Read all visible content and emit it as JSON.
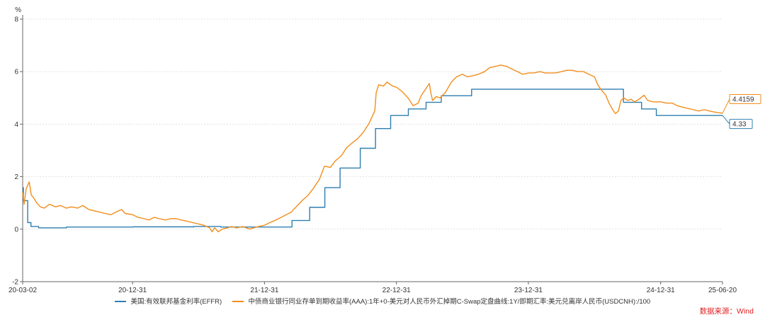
{
  "chart_data": {
    "type": "line",
    "y_unit": "%",
    "ylim": [
      -2,
      8
    ],
    "y_ticks": [
      "8",
      "6",
      "4",
      "2",
      "0",
      "-2"
    ],
    "x_range": [
      "2020-03-02",
      "2025-06-20"
    ],
    "x_ticks": [
      "20-03-02",
      "20-12-31",
      "21-12-31",
      "22-12-31",
      "23-12-31",
      "24-12-31",
      "25-06-20"
    ],
    "grid": true,
    "legend_position": "bottom",
    "series": [
      {
        "name": "美国:有效联邦基金利率(EFFR)",
        "color": "#2e7fb0",
        "end_label": "4.33",
        "step": true,
        "points": [
          [
            "2020-03-02",
            1.58
          ],
          [
            "2020-03-04",
            1.09
          ],
          [
            "2020-03-16",
            0.25
          ],
          [
            "2020-03-25",
            0.1
          ],
          [
            "2020-04-15",
            0.05
          ],
          [
            "2020-07-01",
            0.08
          ],
          [
            "2021-01-01",
            0.09
          ],
          [
            "2021-06-17",
            0.08
          ],
          [
            "2021-06-18",
            0.1
          ],
          [
            "2021-09-01",
            0.08
          ],
          [
            "2022-03-17",
            0.33
          ],
          [
            "2022-05-05",
            0.83
          ],
          [
            "2022-06-16",
            1.58
          ],
          [
            "2022-07-28",
            2.33
          ],
          [
            "2022-09-22",
            3.08
          ],
          [
            "2022-11-03",
            3.83
          ],
          [
            "2022-12-15",
            4.33
          ],
          [
            "2023-02-02",
            4.58
          ],
          [
            "2023-03-23",
            4.83
          ],
          [
            "2023-05-04",
            5.08
          ],
          [
            "2023-07-27",
            5.33
          ],
          [
            "2024-09-19",
            4.83
          ],
          [
            "2024-11-08",
            4.58
          ],
          [
            "2024-12-19",
            4.33
          ],
          [
            "2025-06-20",
            4.33
          ]
        ]
      },
      {
        "name": "中债商业银行同业存单到期收益率(AAA):1年+0-美元对人民币外汇掉期C-Swap定盘曲线:1Y/即期汇率:美元兑离岸人民币(USDCNH):/100",
        "color": "#f28e1c",
        "end_label": "4.4159",
        "step": false,
        "points": [
          [
            "2020-03-02",
            1.4
          ],
          [
            "2020-03-06",
            0.95
          ],
          [
            "2020-03-12",
            1.55
          ],
          [
            "2020-03-20",
            1.8
          ],
          [
            "2020-03-26",
            1.3
          ],
          [
            "2020-04-01",
            1.2
          ],
          [
            "2020-04-10",
            1.0
          ],
          [
            "2020-04-20",
            0.85
          ],
          [
            "2020-05-01",
            0.8
          ],
          [
            "2020-05-15",
            0.95
          ],
          [
            "2020-06-01",
            0.85
          ],
          [
            "2020-06-15",
            0.9
          ],
          [
            "2020-07-01",
            0.8
          ],
          [
            "2020-07-15",
            0.85
          ],
          [
            "2020-08-01",
            0.8
          ],
          [
            "2020-08-15",
            0.9
          ],
          [
            "2020-09-01",
            0.75
          ],
          [
            "2020-09-15",
            0.7
          ],
          [
            "2020-10-01",
            0.65
          ],
          [
            "2020-10-15",
            0.6
          ],
          [
            "2020-11-01",
            0.55
          ],
          [
            "2020-11-15",
            0.65
          ],
          [
            "2020-12-01",
            0.75
          ],
          [
            "2020-12-10",
            0.6
          ],
          [
            "2020-12-31",
            0.55
          ],
          [
            "2021-01-15",
            0.45
          ],
          [
            "2021-02-01",
            0.4
          ],
          [
            "2021-02-15",
            0.35
          ],
          [
            "2021-03-01",
            0.45
          ],
          [
            "2021-03-15",
            0.4
          ],
          [
            "2021-04-01",
            0.35
          ],
          [
            "2021-04-15",
            0.4
          ],
          [
            "2021-05-01",
            0.4
          ],
          [
            "2021-05-15",
            0.35
          ],
          [
            "2021-06-01",
            0.3
          ],
          [
            "2021-06-15",
            0.25
          ],
          [
            "2021-07-01",
            0.2
          ],
          [
            "2021-07-15",
            0.15
          ],
          [
            "2021-08-01",
            0.05
          ],
          [
            "2021-08-08",
            -0.1
          ],
          [
            "2021-08-15",
            0.05
          ],
          [
            "2021-08-25",
            -0.1
          ],
          [
            "2021-09-05",
            0.0
          ],
          [
            "2021-09-20",
            0.05
          ],
          [
            "2021-10-01",
            0.1
          ],
          [
            "2021-10-15",
            0.05
          ],
          [
            "2021-11-01",
            0.1
          ],
          [
            "2021-11-20",
            0.0
          ],
          [
            "2021-12-01",
            0.05
          ],
          [
            "2021-12-15",
            0.1
          ],
          [
            "2021-12-31",
            0.15
          ],
          [
            "2022-01-15",
            0.25
          ],
          [
            "2022-02-01",
            0.35
          ],
          [
            "2022-02-15",
            0.45
          ],
          [
            "2022-03-01",
            0.55
          ],
          [
            "2022-03-15",
            0.65
          ],
          [
            "2022-04-01",
            0.9
          ],
          [
            "2022-04-15",
            1.1
          ],
          [
            "2022-05-01",
            1.3
          ],
          [
            "2022-05-15",
            1.55
          ],
          [
            "2022-06-01",
            1.9
          ],
          [
            "2022-06-15",
            2.4
          ],
          [
            "2022-07-01",
            2.35
          ],
          [
            "2022-07-15",
            2.6
          ],
          [
            "2022-08-01",
            2.8
          ],
          [
            "2022-08-15",
            3.1
          ],
          [
            "2022-09-01",
            3.3
          ],
          [
            "2022-09-15",
            3.45
          ],
          [
            "2022-10-01",
            3.7
          ],
          [
            "2022-10-15",
            4.0
          ],
          [
            "2022-11-01",
            4.5
          ],
          [
            "2022-11-05",
            5.2
          ],
          [
            "2022-11-12",
            5.5
          ],
          [
            "2022-11-25",
            5.45
          ],
          [
            "2022-12-05",
            5.6
          ],
          [
            "2022-12-20",
            5.45
          ],
          [
            "2023-01-01",
            5.4
          ],
          [
            "2023-01-15",
            5.25
          ],
          [
            "2023-02-01",
            5.0
          ],
          [
            "2023-02-15",
            4.7
          ],
          [
            "2023-03-01",
            4.8
          ],
          [
            "2023-03-10",
            5.1
          ],
          [
            "2023-03-20",
            5.3
          ],
          [
            "2023-04-01",
            5.55
          ],
          [
            "2023-04-05",
            5.2
          ],
          [
            "2023-04-10",
            4.9
          ],
          [
            "2023-04-20",
            5.05
          ],
          [
            "2023-05-01",
            5.0
          ],
          [
            "2023-05-15",
            5.2
          ],
          [
            "2023-06-01",
            5.6
          ],
          [
            "2023-06-15",
            5.8
          ],
          [
            "2023-07-01",
            5.9
          ],
          [
            "2023-07-15",
            5.8
          ],
          [
            "2023-08-01",
            5.85
          ],
          [
            "2023-08-15",
            5.9
          ],
          [
            "2023-09-01",
            6.0
          ],
          [
            "2023-09-15",
            6.15
          ],
          [
            "2023-10-01",
            6.2
          ],
          [
            "2023-10-15",
            6.25
          ],
          [
            "2023-11-01",
            6.2
          ],
          [
            "2023-11-15",
            6.1
          ],
          [
            "2023-12-01",
            6.0
          ],
          [
            "2023-12-15",
            5.9
          ],
          [
            "2024-01-01",
            5.95
          ],
          [
            "2024-01-15",
            5.95
          ],
          [
            "2024-02-01",
            6.0
          ],
          [
            "2024-02-15",
            5.95
          ],
          [
            "2024-03-01",
            5.95
          ],
          [
            "2024-03-15",
            5.95
          ],
          [
            "2024-04-01",
            6.0
          ],
          [
            "2024-04-15",
            6.05
          ],
          [
            "2024-05-01",
            6.05
          ],
          [
            "2024-05-15",
            6.0
          ],
          [
            "2024-06-01",
            6.0
          ],
          [
            "2024-06-15",
            5.9
          ],
          [
            "2024-07-01",
            5.8
          ],
          [
            "2024-07-10",
            5.5
          ],
          [
            "2024-07-20",
            5.3
          ],
          [
            "2024-08-01",
            5.1
          ],
          [
            "2024-08-10",
            4.8
          ],
          [
            "2024-08-20",
            4.55
          ],
          [
            "2024-08-28",
            4.4
          ],
          [
            "2024-09-05",
            4.5
          ],
          [
            "2024-09-12",
            4.9
          ],
          [
            "2024-09-20",
            5.0
          ],
          [
            "2024-10-01",
            4.9
          ],
          [
            "2024-10-10",
            4.95
          ],
          [
            "2024-10-20",
            4.85
          ],
          [
            "2024-11-01",
            4.95
          ],
          [
            "2024-11-15",
            5.1
          ],
          [
            "2024-11-25",
            4.9
          ],
          [
            "2024-12-10",
            4.85
          ],
          [
            "2025-01-01",
            4.85
          ],
          [
            "2025-01-15",
            4.8
          ],
          [
            "2025-02-01",
            4.8
          ],
          [
            "2025-02-15",
            4.7
          ],
          [
            "2025-03-01",
            4.65
          ],
          [
            "2025-03-15",
            4.6
          ],
          [
            "2025-04-01",
            4.55
          ],
          [
            "2025-04-15",
            4.5
          ],
          [
            "2025-05-01",
            4.55
          ],
          [
            "2025-05-15",
            4.5
          ],
          [
            "2025-06-01",
            4.45
          ],
          [
            "2025-06-20",
            4.4159
          ]
        ]
      }
    ]
  },
  "source_text": "数据来源：Wind"
}
